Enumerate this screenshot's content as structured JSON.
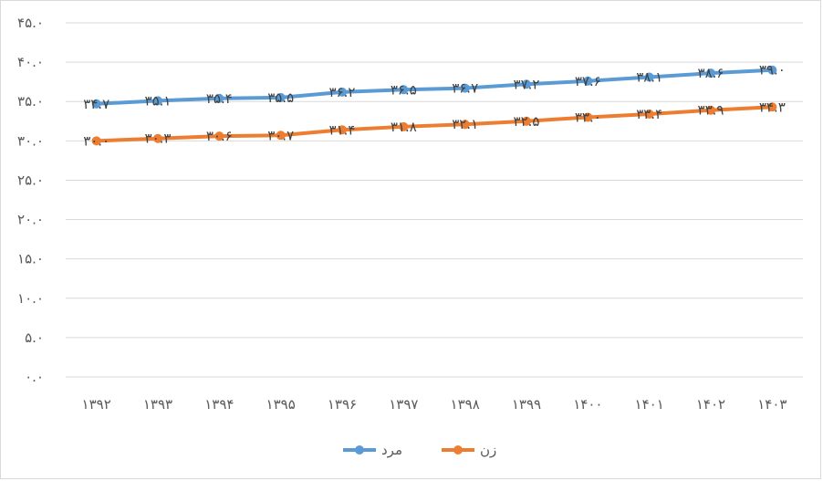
{
  "chart_data": {
    "type": "line",
    "title": "",
    "xlabel": "",
    "ylabel": "",
    "categories": [
      "۱۳۹۲",
      "۱۳۹۳",
      "۱۳۹۴",
      "۱۳۹۵",
      "۱۳۹۶",
      "۱۳۹۷",
      "۱۳۹۸",
      "۱۳۹۹",
      "۱۴۰۰",
      "۱۴۰۱",
      "۱۴۰۲",
      "۱۴۰۳"
    ],
    "ylim": [
      0,
      45
    ],
    "yticks": [
      0,
      5,
      10,
      15,
      20,
      25,
      30,
      35,
      40,
      45
    ],
    "ytick_labels": [
      "۰.۰",
      "۵.۰",
      "۱۰.۰",
      "۱۵.۰",
      "۲۰.۰",
      "۲۵.۰",
      "۳۰.۰",
      "۳۵.۰",
      "۴۰.۰",
      "۴۵.۰"
    ],
    "grid": true,
    "legend_position": "bottom-center",
    "series": [
      {
        "name": "مرد",
        "color": "#5B9BD5",
        "values": [
          34.7,
          35.1,
          35.4,
          35.5,
          36.2,
          36.5,
          36.7,
          37.2,
          37.6,
          38.1,
          38.6,
          39.0
        ],
        "labels": [
          "۳۴.۷",
          "۳۵.۱",
          "۳۵.۴",
          "۳۵.۵",
          "۳۶.۲",
          "۳۶.۵",
          "۳۶.۷",
          "۳۷.۲",
          "۳۷.۶",
          "۳۸.۱",
          "۳۸.۶",
          "۳۹.۰"
        ]
      },
      {
        "name": "زن",
        "color": "#ED7D31",
        "values": [
          30.0,
          30.3,
          30.6,
          30.7,
          31.4,
          31.8,
          32.1,
          32.5,
          33.0,
          33.4,
          33.9,
          34.3
        ],
        "labels": [
          "۳۰.۰",
          "۳۰.۳",
          "۳۰.۶",
          "۳۰.۷",
          "۳۱.۴",
          "۳۱.۸",
          "۳۲.۱",
          "۳۲.۵",
          "۳۳.۰",
          "۳۳.۴",
          "۳۳.۹",
          "۳۴.۳"
        ]
      }
    ]
  }
}
